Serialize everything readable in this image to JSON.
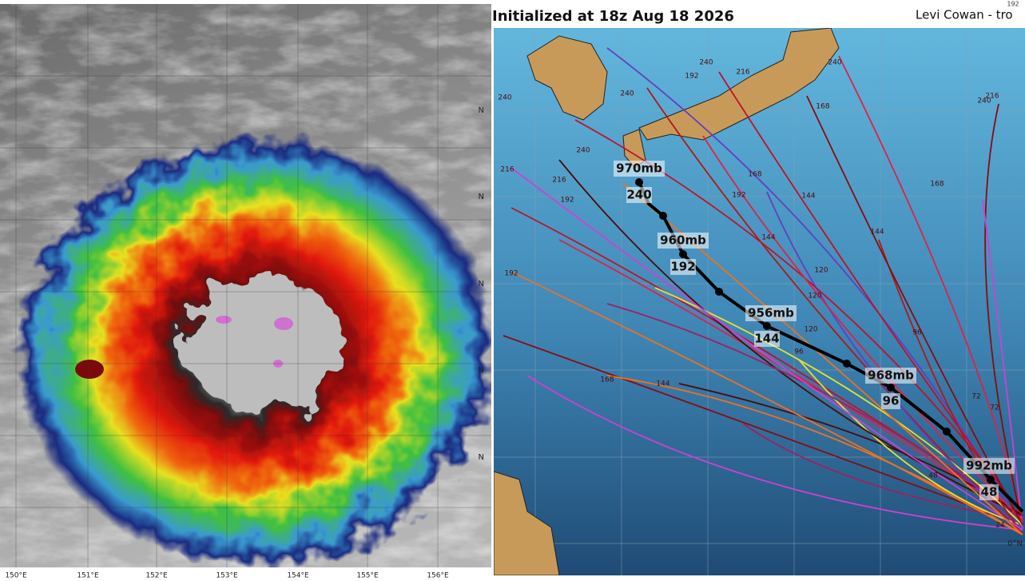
{
  "satellite": {
    "longitude_labels": [
      "150°E",
      "151°E",
      "152°E",
      "153°E",
      "154°E",
      "155°E",
      "156°E"
    ]
  },
  "track_map": {
    "title": "Initialized at 18z Aug 18 2026",
    "credit": "Levi Cowan - tro",
    "corner_label": "192",
    "latitude_labels": [
      "N",
      "N",
      "N",
      "N",
      "N",
      "0°N"
    ],
    "pressure_labels": [
      "970mb",
      "960mb",
      "956mb",
      "968mb",
      "992mb"
    ],
    "hour_labels": [
      "240",
      "192",
      "144",
      "96",
      "48"
    ],
    "ensemble_hour_labels": [
      "240",
      "240",
      "240",
      "240",
      "240",
      "240",
      "216",
      "216",
      "216",
      "216",
      "192",
      "192",
      "192",
      "192",
      "168",
      "168",
      "168",
      "168",
      "144",
      "144",
      "144",
      "144",
      "120",
      "120",
      "120",
      "96",
      "96",
      "72",
      "72",
      "48",
      "24"
    ]
  }
}
